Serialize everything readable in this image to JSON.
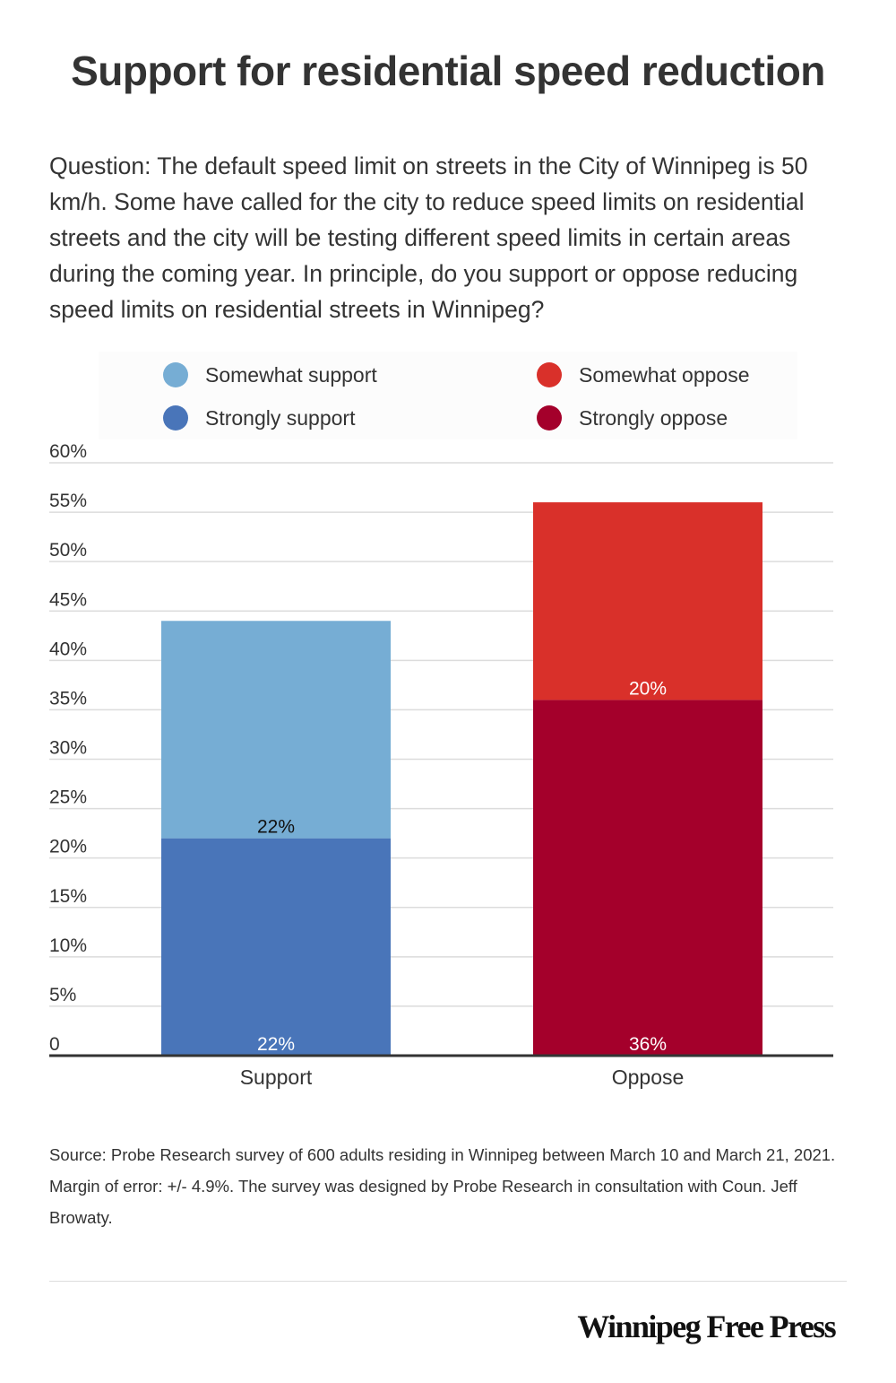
{
  "title": "Support for residential speed reduction",
  "question": "Question: The default speed limit on streets in the City of Winnipeg is 50 km/h. Some have called for the city to reduce speed limits on residential streets and the city will be testing different speed limits in certain areas during the coming year. In principle, do you support or oppose reducing speed limits on residential streets in Winnipeg?",
  "legend": [
    {
      "label": "Somewhat support",
      "color": "#76add4"
    },
    {
      "label": "Somewhat oppose",
      "color": "#d9302a"
    },
    {
      "label": "Strongly support",
      "color": "#4975b9"
    },
    {
      "label": "Strongly oppose",
      "color": "#a4002b"
    }
  ],
  "chart_data": {
    "type": "bar",
    "stacked": true,
    "title": "Support for residential speed reduction",
    "xlabel": "",
    "ylabel": "",
    "categories": [
      "Support",
      "Oppose"
    ],
    "series": [
      {
        "name": "Strongly support",
        "values": [
          22,
          0
        ],
        "color": "#4975b9"
      },
      {
        "name": "Somewhat support",
        "values": [
          22,
          0
        ],
        "color": "#76add4"
      },
      {
        "name": "Strongly oppose",
        "values": [
          0,
          36
        ],
        "color": "#a4002b"
      },
      {
        "name": "Somewhat oppose",
        "values": [
          0,
          20
        ],
        "color": "#d9302a"
      }
    ],
    "ylim": [
      0,
      60
    ],
    "yticks": [
      0,
      5,
      10,
      15,
      20,
      25,
      30,
      35,
      40,
      45,
      50,
      55,
      60
    ],
    "ytick_labels": [
      "0",
      "5%",
      "10%",
      "15%",
      "20%",
      "25%",
      "30%",
      "35%",
      "40%",
      "45%",
      "50%",
      "55%",
      "60%"
    ],
    "data_labels": [
      {
        "category": "Support",
        "series": "Strongly support",
        "text": "22%",
        "color": "#ffffff"
      },
      {
        "category": "Support",
        "series": "Somewhat support",
        "text": "22%",
        "color": "#111111"
      },
      {
        "category": "Oppose",
        "series": "Strongly oppose",
        "text": "36%",
        "color": "#ffffff"
      },
      {
        "category": "Oppose",
        "series": "Somewhat oppose",
        "text": "20%",
        "color": "#ffffff"
      }
    ],
    "grid": true,
    "legend": "top"
  },
  "source": "Source: Probe Research survey of 600 adults residing in Winnipeg between March 10 and March 21, 2021. Margin of error: +/- 4.9%. The survey was designed by Probe Research in consultation with Coun. Jeff Browaty.",
  "logo": "Winnipeg Free Press"
}
